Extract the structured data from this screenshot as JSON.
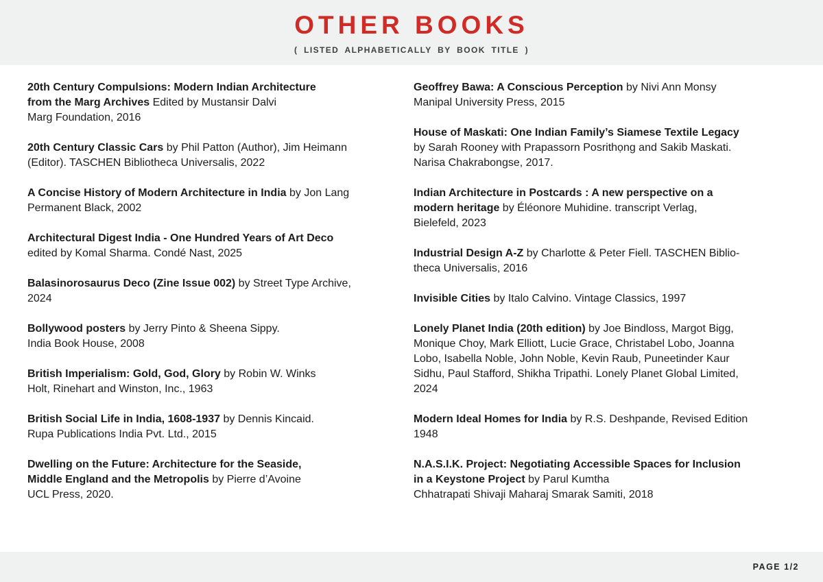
{
  "header": {
    "title": "OTHER BOOKS",
    "subtitle": "( LISTED ALPHABETICALLY BY BOOK TITLE )"
  },
  "colors": {
    "accent_red": "#cf2b27",
    "band_background": "#f0f2f1",
    "body_text": "#1c1c1c"
  },
  "footer": {
    "page_label": "PAGE 1/2"
  },
  "columns": {
    "left": [
      {
        "lines": [
          [
            {
              "t": "20th Century Compulsions: Modern Indian Architecture",
              "b": true
            }
          ],
          [
            {
              "t": "from the Marg Archives",
              "b": true
            },
            {
              "t": " Edited by Mustansir Dalvi",
              "b": false
            }
          ],
          [
            {
              "t": "Marg Foundation, 2016",
              "b": false
            }
          ]
        ]
      },
      {
        "lines": [
          [
            {
              "t": "20th Century Classic Cars",
              "b": true
            },
            {
              "t": " by Phil Patton (Author), Jim Heimann",
              "b": false
            }
          ],
          [
            {
              "t": "(Editor). TASCHEN Bibliotheca Universalis, 2022",
              "b": false
            }
          ]
        ]
      },
      {
        "lines": [
          [
            {
              "t": "A Concise History of Modern Architecture in India",
              "b": true
            },
            {
              "t": " by Jon Lang",
              "b": false
            }
          ],
          [
            {
              "t": "Permanent Black, 2002",
              "b": false
            }
          ]
        ]
      },
      {
        "lines": [
          [
            {
              "t": "Architectural Digest India - One Hundred Years of Art Deco",
              "b": true
            }
          ],
          [
            {
              "t": "edited by Komal Sharma. Condé Nast, 2025",
              "b": false
            }
          ]
        ]
      },
      {
        "lines": [
          [
            {
              "t": "Balasinorosaurus Deco (Zine Issue 002)",
              "b": true
            },
            {
              "t": " by Street Type Archive,",
              "b": false
            }
          ],
          [
            {
              "t": "2024",
              "b": false
            }
          ]
        ]
      },
      {
        "lines": [
          [
            {
              "t": "Bollywood posters",
              "b": true
            },
            {
              "t": " by Jerry Pinto & Sheena Sippy.",
              "b": false
            }
          ],
          [
            {
              "t": "India Book House, 2008",
              "b": false
            }
          ]
        ]
      },
      {
        "lines": [
          [
            {
              "t": "British Imperialism: Gold, God, Glory",
              "b": true
            },
            {
              "t": " by Robin W. Winks",
              "b": false
            }
          ],
          [
            {
              "t": "Holt, Rinehart and Winston, Inc., 1963",
              "b": false
            }
          ]
        ]
      },
      {
        "lines": [
          [
            {
              "t": "British Social Life in India, 1608-1937",
              "b": true
            },
            {
              "t": " by Dennis Kincaid.",
              "b": false
            }
          ],
          [
            {
              "t": "Rupa Publications India Pvt. Ltd., 2015",
              "b": false
            }
          ]
        ]
      },
      {
        "lines": [
          [
            {
              "t": "Dwelling on the Future: Architecture for the Seaside,",
              "b": true
            }
          ],
          [
            {
              "t": "Middle England and the Metropolis",
              "b": true
            },
            {
              "t": " by Pierre d’Avoine",
              "b": false
            }
          ],
          [
            {
              "t": "UCL Press, 2020.",
              "b": false
            }
          ]
        ]
      }
    ],
    "right": [
      {
        "lines": [
          [
            {
              "t": "Geoffrey Bawa: A Conscious Perception",
              "b": true
            },
            {
              "t": " by Nivi Ann Monsy",
              "b": false
            }
          ],
          [
            {
              "t": "Manipal University Press, 2015",
              "b": false
            }
          ]
        ]
      },
      {
        "lines": [
          [
            {
              "t": "House of Maskati: One Indian Family’s Siamese Textile Legacy",
              "b": true
            }
          ],
          [
            {
              "t": "by Sarah Rooney with Prapassorn Posrithọng and Sakib Maskati.",
              "b": false
            }
          ],
          [
            {
              "t": "Narisa Chakrabongse, 2017.",
              "b": false
            }
          ]
        ]
      },
      {
        "lines": [
          [
            {
              "t": "Indian Architecture in Postcards : A new perspective on a",
              "b": true
            }
          ],
          [
            {
              "t": "modern heritage",
              "b": true
            },
            {
              "t": " by Éléonore Muhidine. transcript Verlag,",
              "b": false
            }
          ],
          [
            {
              "t": "Bielefeld, 2023",
              "b": false
            }
          ]
        ]
      },
      {
        "lines": [
          [
            {
              "t": "Industrial Design A-Z",
              "b": true
            },
            {
              "t": " by Charlotte & Peter Fiell. TASCHEN Biblio-",
              "b": false
            }
          ],
          [
            {
              "t": "theca Universalis, 2016",
              "b": false
            }
          ]
        ]
      },
      {
        "lines": [
          [
            {
              "t": "Invisible Cities",
              "b": true
            },
            {
              "t": " by Italo Calvino. Vintage Classics, 1997",
              "b": false
            }
          ]
        ]
      },
      {
        "lines": [
          [
            {
              "t": "Lonely Planet India (20th edition)",
              "b": true
            },
            {
              "t": " by Joe Bindloss, Margot Bigg,",
              "b": false
            }
          ],
          [
            {
              "t": "Monique Choy, Mark Elliott, Lucie Grace, Christabel Lobo, Joanna",
              "b": false
            }
          ],
          [
            {
              "t": "Lobo, Isabella Noble, John Noble, Kevin Raub, Puneetinder Kaur",
              "b": false
            }
          ],
          [
            {
              "t": "Sidhu, Paul Stafford, Shikha Tripathi. Lonely Planet Global Limited,",
              "b": false
            }
          ],
          [
            {
              "t": "2024",
              "b": false
            }
          ]
        ]
      },
      {
        "lines": [
          [
            {
              "t": "Modern Ideal Homes for India",
              "b": true
            },
            {
              "t": " by R.S. Deshpande, Revised Edition",
              "b": false
            }
          ],
          [
            {
              "t": "1948",
              "b": false
            }
          ]
        ]
      },
      {
        "lines": [
          [
            {
              "t": "N.A.S.I.K. Project: Negotiating Accessible Spaces for Inclusion",
              "b": true
            }
          ],
          [
            {
              "t": "in a Keystone Project",
              "b": true
            },
            {
              "t": " by Parul Kumtha",
              "b": false
            }
          ],
          [
            {
              "t": "Chhatrapati Shivaji Maharaj Smarak Samiti, 2018",
              "b": false
            }
          ]
        ]
      }
    ]
  }
}
